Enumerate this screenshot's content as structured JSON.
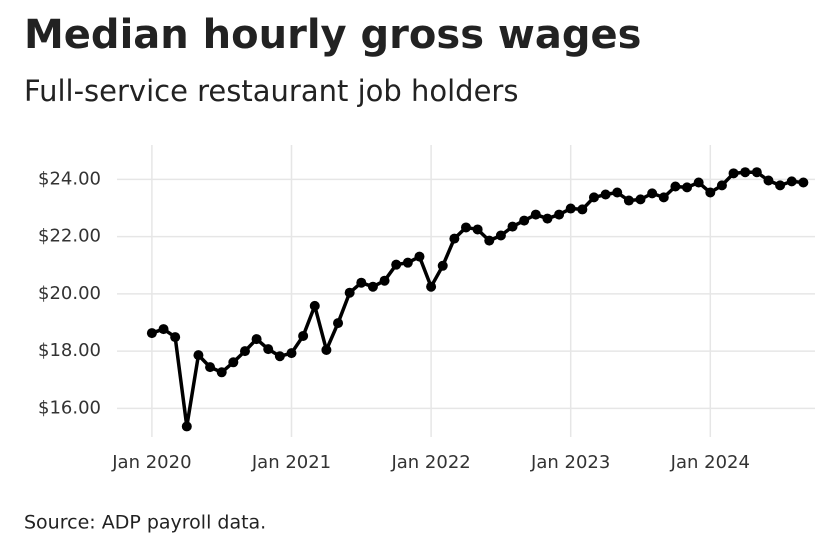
{
  "chart_data": {
    "type": "line",
    "title": "Median hourly gross wages",
    "subtitle": "Full-service restaurant job holders",
    "source": "Source: ADP payroll data.",
    "x": [
      "2020-01",
      "2020-02",
      "2020-03",
      "2020-04",
      "2020-05",
      "2020-06",
      "2020-07",
      "2020-08",
      "2020-09",
      "2020-10",
      "2020-11",
      "2020-12",
      "2021-01",
      "2021-02",
      "2021-03",
      "2021-04",
      "2021-05",
      "2021-06",
      "2021-07",
      "2021-08",
      "2021-09",
      "2021-10",
      "2021-11",
      "2021-12",
      "2022-01",
      "2022-02",
      "2022-03",
      "2022-04",
      "2022-05",
      "2022-06",
      "2022-07",
      "2022-08",
      "2022-09",
      "2022-10",
      "2022-11",
      "2022-12",
      "2023-01",
      "2023-02",
      "2023-03",
      "2023-04",
      "2023-05",
      "2023-06",
      "2023-07",
      "2023-08",
      "2023-09",
      "2023-10",
      "2023-11",
      "2023-12",
      "2024-01",
      "2024-02",
      "2024-03",
      "2024-04",
      "2024-05",
      "2024-06",
      "2024-07",
      "2024-08",
      "2024-09"
    ],
    "values": [
      18.63,
      18.77,
      18.49,
      15.37,
      17.86,
      17.44,
      17.26,
      17.61,
      18.0,
      18.42,
      18.07,
      17.82,
      17.93,
      18.53,
      19.58,
      18.04,
      18.98,
      20.04,
      20.39,
      20.25,
      20.46,
      21.02,
      21.09,
      21.3,
      20.25,
      20.98,
      21.93,
      22.32,
      22.25,
      21.86,
      22.04,
      22.35,
      22.56,
      22.77,
      22.63,
      22.77,
      22.98,
      22.95,
      23.37,
      23.47,
      23.54,
      23.26,
      23.3,
      23.51,
      23.37,
      23.75,
      23.72,
      23.89,
      23.54,
      23.79,
      24.21,
      24.25,
      24.25,
      23.96,
      23.79,
      23.93,
      23.89
    ],
    "color": "#000000",
    "xlim": [
      "2019-10",
      "2024-10"
    ],
    "xticks": [
      {
        "value": "2020-01",
        "label": "Jan 2020"
      },
      {
        "value": "2021-01",
        "label": "Jan 2021"
      },
      {
        "value": "2022-01",
        "label": "Jan 2022"
      },
      {
        "value": "2023-01",
        "label": "Jan 2023"
      },
      {
        "value": "2024-01",
        "label": "Jan 2024"
      }
    ],
    "ylim": [
      15,
      25.2
    ],
    "yticks": [
      {
        "value": 16,
        "label": "$16.00"
      },
      {
        "value": 18,
        "label": "$18.00"
      },
      {
        "value": 20,
        "label": "$20.00"
      },
      {
        "value": 22,
        "label": "$22.00"
      },
      {
        "value": 24,
        "label": "$24.00"
      }
    ],
    "grid": true
  }
}
